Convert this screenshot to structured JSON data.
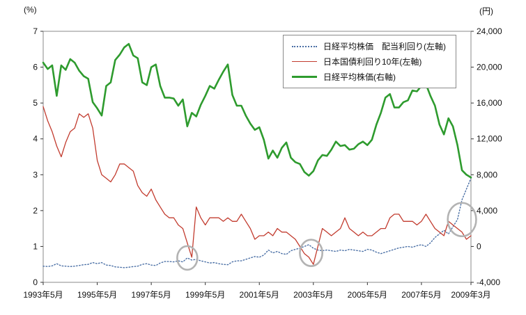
{
  "chart_data": {
    "type": "line",
    "title": "",
    "left_axis": {
      "unit": "(%)",
      "min": 0,
      "max": 7,
      "ticks": [
        0,
        1,
        2,
        3,
        4,
        5,
        6,
        7
      ],
      "tick_labels": [
        "0",
        "1",
        "2",
        "3",
        "4",
        "5",
        "6",
        "7"
      ]
    },
    "right_axis": {
      "unit": "(円)",
      "min": -4000,
      "max": 24000,
      "ticks": [
        -4000,
        0,
        4000,
        8000,
        12000,
        16000,
        20000,
        24000
      ],
      "tick_labels": [
        "-4,000",
        "0",
        "4,000",
        "8,000",
        "12,000",
        "16,000",
        "20,000",
        "24,000"
      ]
    },
    "x_axis": {
      "start": "1993年5月",
      "end": "2009年3月",
      "total_months": 190,
      "tick_months": [
        0,
        24,
        48,
        72,
        96,
        120,
        144,
        168,
        190
      ],
      "tick_labels": [
        "1993年5月",
        "1995年5月",
        "1997年5月",
        "1999年5月",
        "2001年5月",
        "2003年5月",
        "2005年5月",
        "2007年5月",
        "2009年3月"
      ]
    },
    "sample_interval_months": 2,
    "series": [
      {
        "name": "日経平均株価　配当利回り(左軸)",
        "axis": "left",
        "style": "dotted",
        "color": "#4a6fa5",
        "values": [
          0.45,
          0.44,
          0.46,
          0.52,
          0.46,
          0.45,
          0.44,
          0.45,
          0.47,
          0.49,
          0.5,
          0.55,
          0.52,
          0.55,
          0.48,
          0.47,
          0.43,
          0.42,
          0.41,
          0.42,
          0.44,
          0.45,
          0.5,
          0.52,
          0.48,
          0.47,
          0.54,
          0.58,
          0.58,
          0.57,
          0.6,
          0.57,
          0.68,
          0.62,
          0.64,
          0.6,
          0.57,
          0.54,
          0.55,
          0.52,
          0.5,
          0.49,
          0.57,
          0.6,
          0.6,
          0.64,
          0.68,
          0.72,
          0.7,
          0.76,
          0.9,
          0.82,
          0.86,
          0.8,
          0.78,
          0.88,
          0.92,
          0.95,
          1.0,
          1.05,
          0.95,
          0.9,
          0.88,
          0.9,
          0.88,
          0.86,
          0.9,
          0.88,
          0.92,
          0.9,
          0.88,
          0.86,
          0.92,
          0.9,
          0.84,
          0.8,
          0.84,
          0.88,
          0.92,
          0.96,
          0.98,
          1.0,
          0.98,
          1.02,
          1.05,
          1.0,
          1.1,
          1.25,
          1.35,
          1.45,
          1.35,
          1.55,
          1.75,
          2.3,
          2.6,
          2.9
        ]
      },
      {
        "name": "日本国債利回り10年(左軸)",
        "axis": "left",
        "style": "solid-thin",
        "color": "#c23b2e",
        "values": [
          4.9,
          4.5,
          4.2,
          3.8,
          3.5,
          3.9,
          4.2,
          4.3,
          4.7,
          4.6,
          4.7,
          4.3,
          3.4,
          3.0,
          2.9,
          2.8,
          3.0,
          3.3,
          3.3,
          3.2,
          3.1,
          2.7,
          2.5,
          2.4,
          2.6,
          2.3,
          2.1,
          1.9,
          1.8,
          1.8,
          1.6,
          1.5,
          1.1,
          0.7,
          2.1,
          1.8,
          1.6,
          1.8,
          1.8,
          1.8,
          1.7,
          1.8,
          1.7,
          1.7,
          1.9,
          1.7,
          1.5,
          1.2,
          1.3,
          1.3,
          1.4,
          1.3,
          1.5,
          1.4,
          1.4,
          1.3,
          1.2,
          1.0,
          0.8,
          0.7,
          0.5,
          1.0,
          1.5,
          1.4,
          1.3,
          1.4,
          1.5,
          1.8,
          1.5,
          1.4,
          1.3,
          1.4,
          1.3,
          1.3,
          1.4,
          1.5,
          1.5,
          1.8,
          1.9,
          1.9,
          1.7,
          1.7,
          1.7,
          1.6,
          1.7,
          1.9,
          1.7,
          1.5,
          1.4,
          1.3,
          1.7,
          1.6,
          1.5,
          1.4,
          1.2,
          1.3
        ]
      },
      {
        "name": "日経平均株価(右軸)",
        "axis": "right",
        "style": "solid-thick",
        "color": "#2e9b2e",
        "values": [
          20500,
          19800,
          20200,
          16800,
          20200,
          19700,
          20900,
          20500,
          19600,
          19000,
          18700,
          16100,
          15400,
          14600,
          17900,
          18300,
          20800,
          21400,
          22200,
          22600,
          21300,
          21000,
          18300,
          18000,
          20000,
          20300,
          17900,
          16600,
          16600,
          16500,
          15700,
          16400,
          13400,
          14900,
          14500,
          15800,
          16800,
          17900,
          17600,
          18600,
          19500,
          20300,
          16900,
          15700,
          15700,
          14600,
          13700,
          13000,
          13300,
          11900,
          9800,
          10700,
          9900,
          11000,
          11600,
          9900,
          9400,
          9200,
          8300,
          7900,
          8400,
          9600,
          10200,
          10100,
          10800,
          11700,
          11200,
          11300,
          10800,
          10900,
          11400,
          11700,
          11300,
          11900,
          13600,
          14900,
          16600,
          17000,
          15500,
          15500,
          16100,
          16300,
          17400,
          17300,
          17900,
          18100,
          16800,
          15700,
          13600,
          12500,
          14300,
          13400,
          11300,
          8500,
          8000,
          7700
        ]
      }
    ],
    "annotations": [
      {
        "type": "circle",
        "month": 64,
        "value_pct": 0.68,
        "radius": 17
      },
      {
        "type": "circle",
        "month": 119,
        "value_pct": 0.82,
        "radius": 19
      },
      {
        "type": "circle",
        "month": 186,
        "value_pct": 1.75,
        "radius": 24
      }
    ],
    "legend_position": "top-right-inside",
    "grid": false,
    "frame_color": "#8a8a8a",
    "annotation_color": "#b3b3b3"
  }
}
